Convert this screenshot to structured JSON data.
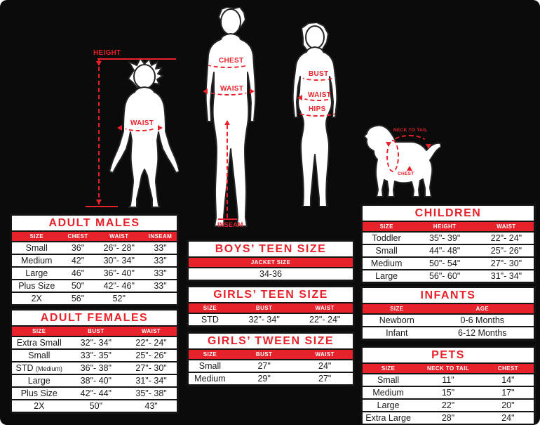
{
  "colors": {
    "accent_red": "#e8222b",
    "background": "#0b0b0b",
    "table_bg": "#ffffff",
    "border": "#141414"
  },
  "figures": {
    "child": "boy-child-silhouette",
    "male": "adult-male-silhouette",
    "female": "adult-female-silhouette",
    "dog": "dog-silhouette"
  },
  "annotations": {
    "height": "HEIGHT",
    "child_waist": "WAIST",
    "male_chest": "CHEST",
    "male_waist": "WAIST",
    "male_inseam": "INSEAM",
    "female_bust": "BUST",
    "female_waist": "WAIST",
    "female_hips": "HIPS",
    "dog_neck_to_tail": "NECK TO TAIL",
    "dog_chest": "CHEST"
  },
  "tables": {
    "adult_males": {
      "title": "ADULT MALES",
      "headers": [
        "SIZE",
        "CHEST",
        "WAIST",
        "INSEAM"
      ],
      "rows": [
        [
          "Small",
          "36\"",
          "26\"- 28\"",
          "33\""
        ],
        [
          "Medium",
          "42\"",
          "30\"- 34\"",
          "33\""
        ],
        [
          "Large",
          "46\"",
          "36\"- 40\"",
          "33\""
        ],
        [
          "Plus Size",
          "50\"",
          "42\"- 46\"",
          "33\""
        ],
        [
          "2X",
          "56\"",
          "52\"",
          ""
        ]
      ]
    },
    "adult_females": {
      "title": "ADULT FEMALES",
      "headers": [
        "SIZE",
        "BUST",
        "WAIST"
      ],
      "rows": [
        [
          "Extra Small",
          "32\"- 34\"",
          "22\"- 24\""
        ],
        [
          "Small",
          "33\"- 35\"",
          "25\"- 26\""
        ],
        [
          "STD (Medium)",
          "36\"- 38\"",
          "27\"- 30\""
        ],
        [
          "Large",
          "38\"- 40\"",
          "31\"- 34\""
        ],
        [
          "Plus Size",
          "42\"- 44\"",
          "35\"- 38\""
        ],
        [
          "2X",
          "50\"",
          "43\""
        ]
      ]
    },
    "boys_teen": {
      "title": "BOYS’ TEEN SIZE",
      "headers": [
        "JACKET SIZE"
      ],
      "rows": [
        [
          "34-36"
        ]
      ]
    },
    "girls_teen": {
      "title": "GIRLS’ TEEN SIZE",
      "headers": [
        "SIZE",
        "BUST",
        "WAIST"
      ],
      "rows": [
        [
          "STD",
          "32\"- 34\"",
          "22\"- 24\""
        ]
      ]
    },
    "girls_tween": {
      "title": "GIRLS’ TWEEN SIZE",
      "headers": [
        "SIZE",
        "BUST",
        "WAIST"
      ],
      "rows": [
        [
          "Small",
          "27\"",
          "24\""
        ],
        [
          "Medium",
          "29\"",
          "27\""
        ]
      ]
    },
    "children": {
      "title": "CHILDREN",
      "headers": [
        "SIZE",
        "HEIGHT",
        "WAIST"
      ],
      "rows": [
        [
          "Toddler",
          "35\"- 39\"",
          "22\"- 24\""
        ],
        [
          "Small",
          "44\"- 48\"",
          "25\"- 26\""
        ],
        [
          "Medium",
          "50\"- 54\"",
          "27\"- 30\""
        ],
        [
          "Large",
          "56\"- 60\"",
          "31\"- 34\""
        ]
      ]
    },
    "infants": {
      "title": "INFANTS",
      "headers": [
        "SIZE",
        "AGE"
      ],
      "rows": [
        [
          "Newborn",
          "0-6 Months"
        ],
        [
          "Infant",
          "6-12 Months"
        ]
      ]
    },
    "pets": {
      "title": "PETS",
      "headers": [
        "SIZE",
        "NECK TO TAIL",
        "CHEST"
      ],
      "rows": [
        [
          "Small",
          "11\"",
          "14\""
        ],
        [
          "Medium",
          "15\"",
          "17\""
        ],
        [
          "Large",
          "22\"",
          "20\""
        ],
        [
          "Extra Large",
          "28\"",
          "24\""
        ]
      ]
    }
  }
}
